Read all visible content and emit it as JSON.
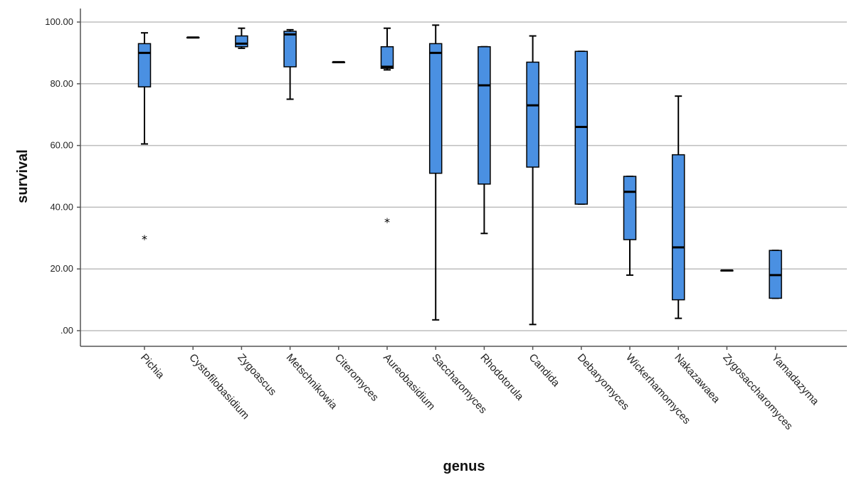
{
  "chart_data": {
    "type": "boxplot",
    "xlabel": "genus",
    "ylabel": "survival",
    "ylim": [
      0,
      100
    ],
    "yticks": [
      0,
      20,
      40,
      60,
      80,
      100
    ],
    "ytick_labels": [
      ".00",
      "20.00",
      "40.00",
      "60.00",
      "80.00",
      "100.00"
    ],
    "grid": true,
    "box_color": "#4a90e2",
    "categories": [
      "Pichia",
      "Cystofilobasidium",
      "Zygoascus",
      "Metschnikowia",
      "Citeromyces",
      "Aureobasidium",
      "Saccharomyces",
      "Rhodotorula",
      "Candida",
      "Debaryomyces",
      "Wickerhamomyces",
      "Nakazawaea",
      "Zygosaccharomyces",
      "Yamadazyma"
    ],
    "boxes": [
      {
        "genus": "Pichia",
        "min": 60.5,
        "q1": 79,
        "median": 90,
        "q3": 93,
        "max": 96.5,
        "outliers": [
          30
        ]
      },
      {
        "genus": "Cystofilobasidium",
        "min": 95,
        "q1": 95,
        "median": 95,
        "q3": 95,
        "max": 95,
        "outliers": []
      },
      {
        "genus": "Zygoascus",
        "min": 91.5,
        "q1": 92,
        "median": 93,
        "q3": 95.5,
        "max": 98,
        "outliers": []
      },
      {
        "genus": "Metschnikowia",
        "min": 75,
        "q1": 85.5,
        "median": 96,
        "q3": 97,
        "max": 97.5,
        "outliers": []
      },
      {
        "genus": "Citeromyces",
        "min": 87,
        "q1": 87,
        "median": 87,
        "q3": 87,
        "max": 87,
        "outliers": []
      },
      {
        "genus": "Aureobasidium",
        "min": 84.5,
        "q1": 85,
        "median": 85.5,
        "q3": 92,
        "max": 98,
        "outliers": [
          35.5
        ]
      },
      {
        "genus": "Saccharomyces",
        "min": 3.5,
        "q1": 51,
        "median": 90,
        "q3": 93,
        "max": 99,
        "outliers": []
      },
      {
        "genus": "Rhodotorula",
        "min": 31.5,
        "q1": 47.5,
        "median": 79.5,
        "q3": 92,
        "max": 92,
        "outliers": []
      },
      {
        "genus": "Candida",
        "min": 2,
        "q1": 53,
        "median": 73,
        "q3": 87,
        "max": 95.5,
        "outliers": []
      },
      {
        "genus": "Debaryomyces",
        "min": 41,
        "q1": 41,
        "median": 66,
        "q3": 90.5,
        "max": 90.5,
        "outliers": []
      },
      {
        "genus": "Wickerhamomyces",
        "min": 18,
        "q1": 29.5,
        "median": 45,
        "q3": 50,
        "max": 50,
        "outliers": []
      },
      {
        "genus": "Nakazawaea",
        "min": 4,
        "q1": 10,
        "median": 27,
        "q3": 57,
        "max": 76,
        "outliers": []
      },
      {
        "genus": "Zygosaccharomyces",
        "min": 19.5,
        "q1": 19.5,
        "median": 19.5,
        "q3": 19.5,
        "max": 19.5,
        "outliers": []
      },
      {
        "genus": "Yamadazyma",
        "min": 10.5,
        "q1": 10.5,
        "median": 18,
        "q3": 26,
        "max": 26,
        "outliers": []
      }
    ]
  }
}
